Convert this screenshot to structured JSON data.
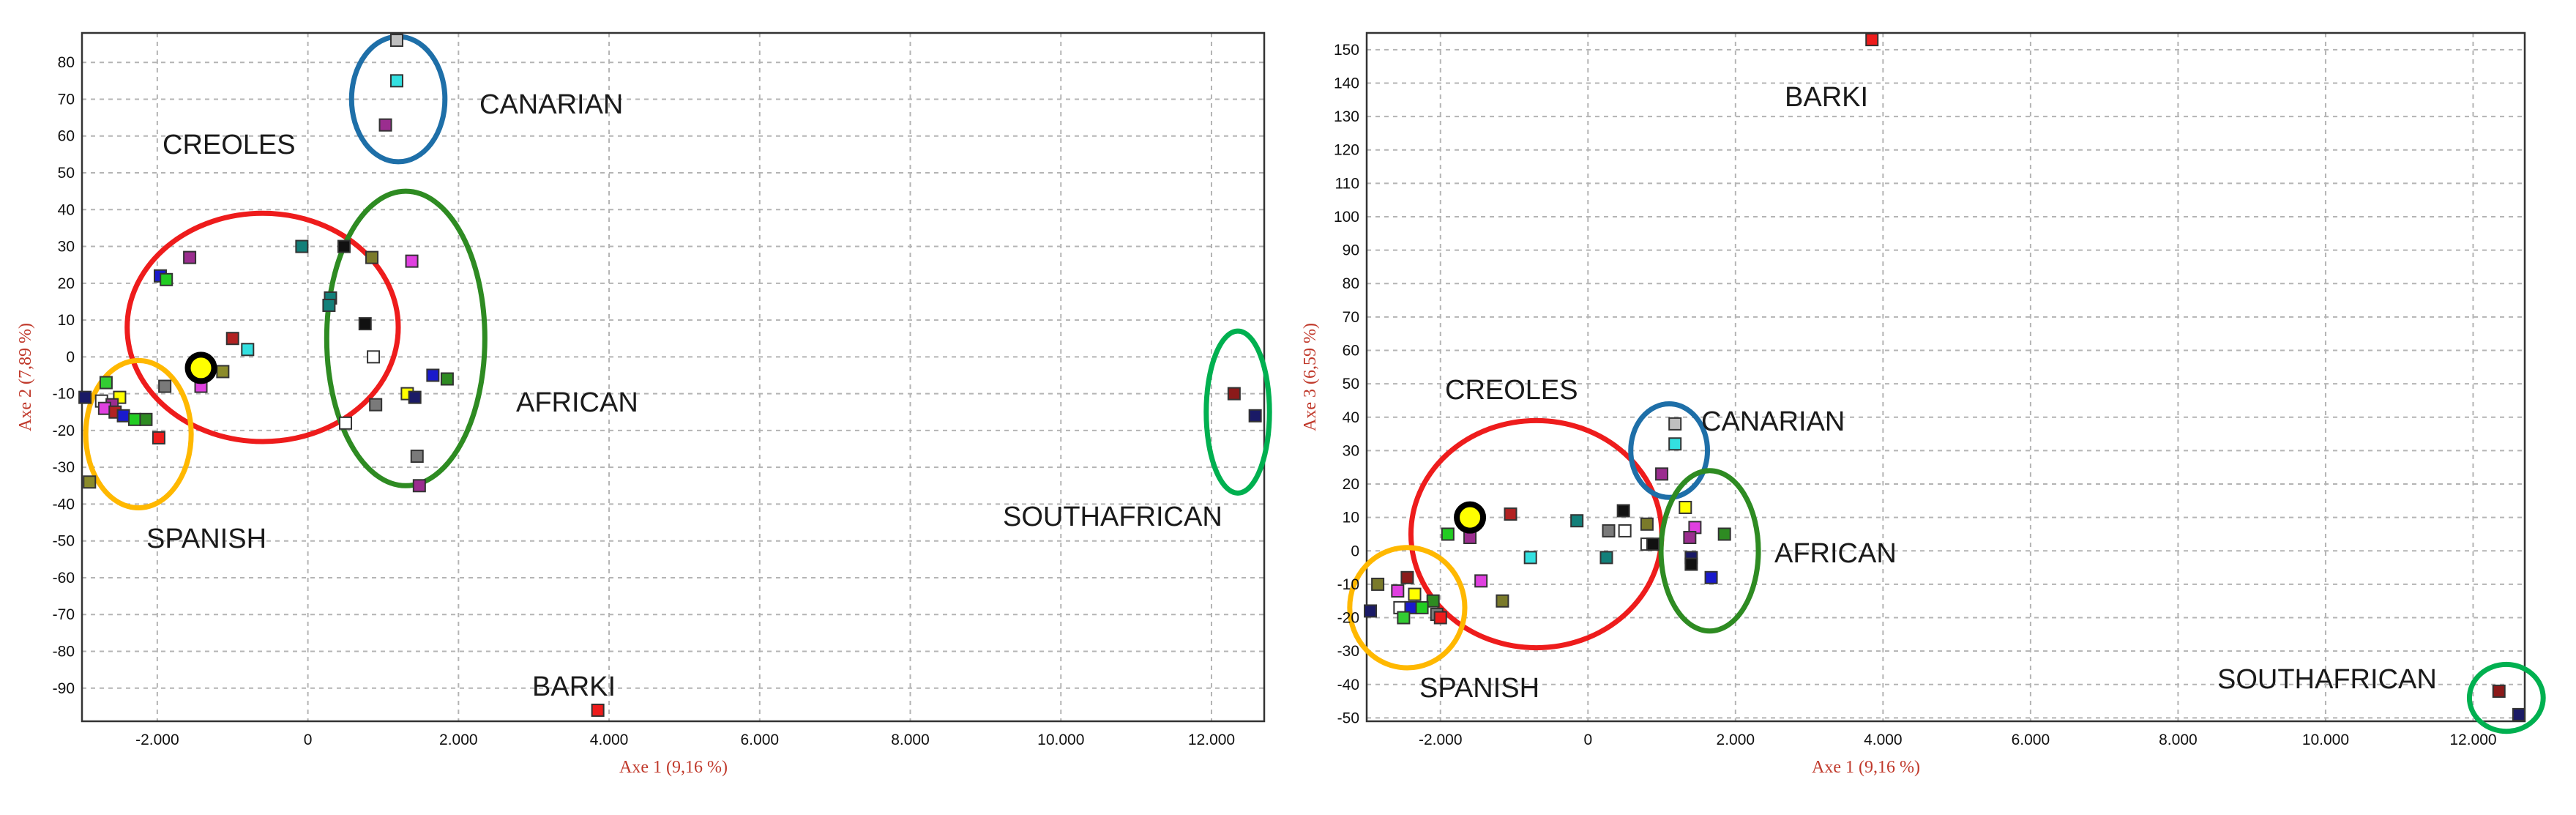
{
  "chart_data": [
    {
      "type": "scatter",
      "xlabel": "Axe 1 (9,16 %)",
      "ylabel": "Axe 2 (7,89 %)",
      "xlim": [
        -3000,
        12700
      ],
      "ylim": [
        -99,
        88
      ],
      "xticks": [
        -2000,
        0,
        2000,
        4000,
        6000,
        8000,
        10000,
        12000
      ],
      "xtick_labels": [
        "-2.000",
        "0",
        "2.000",
        "4.000",
        "6.000",
        "8.000",
        "10.000",
        "12.000"
      ],
      "yticks": [
        80,
        70,
        60,
        50,
        40,
        30,
        20,
        10,
        0,
        -10,
        -20,
        -30,
        -40,
        -50,
        -60,
        -70,
        -80,
        -90
      ],
      "grid": true,
      "groups": [
        {
          "label": "CREOLES",
          "cx": -600,
          "cy": 8,
          "rx": 1800,
          "ry": 31,
          "color": "#ee1c1c"
        },
        {
          "label": "CANARIAN",
          "cx": 1200,
          "cy": 70,
          "rx": 620,
          "ry": 17,
          "color": "#1e6fa8"
        },
        {
          "label": "AFRICAN",
          "cx": 1300,
          "cy": 5,
          "rx": 1050,
          "ry": 40,
          "color": "#2e8b22"
        },
        {
          "label": "SPANISH",
          "cx": -2250,
          "cy": -21,
          "rx": 700,
          "ry": 20,
          "color": "#ffb800"
        },
        {
          "label": "SOUTHAFRICAN",
          "cx": 12350,
          "cy": -15,
          "rx": 420,
          "ry": 22,
          "color": "#00b050"
        },
        {
          "label": "BARKI",
          "cx": null,
          "cy": null,
          "rx": null,
          "ry": null,
          "color": null
        }
      ],
      "centroid": {
        "x": -1420,
        "y": -3
      },
      "points": [
        {
          "x": 1180,
          "y": 86,
          "color": "#bfbfbf"
        },
        {
          "x": 1180,
          "y": 75,
          "color": "#33e0e0"
        },
        {
          "x": 1030,
          "y": 63,
          "color": "#9b2d8f"
        },
        {
          "x": -80,
          "y": 30,
          "color": "#13807a"
        },
        {
          "x": 480,
          "y": 30,
          "color": "#111111"
        },
        {
          "x": 850,
          "y": 27,
          "color": "#7a7a2a"
        },
        {
          "x": 1380,
          "y": 26,
          "color": "#e040e0"
        },
        {
          "x": -1570,
          "y": 27,
          "color": "#9b2d8f"
        },
        {
          "x": 300,
          "y": 16,
          "color": "#13807a"
        },
        {
          "x": 280,
          "y": 14,
          "color": "#13807a"
        },
        {
          "x": -1960,
          "y": 22,
          "color": "#1a1acc"
        },
        {
          "x": -1880,
          "y": 21,
          "color": "#22cc22"
        },
        {
          "x": 760,
          "y": 9,
          "color": "#111111"
        },
        {
          "x": -1000,
          "y": 5,
          "color": "#b22222"
        },
        {
          "x": -800,
          "y": 2,
          "color": "#33e0e0"
        },
        {
          "x": 870,
          "y": 0,
          "color": "#ffffff"
        },
        {
          "x": 1660,
          "y": -5,
          "color": "#1a1acc"
        },
        {
          "x": 1850,
          "y": -6,
          "color": "#2e8b22"
        },
        {
          "x": -1130,
          "y": -4,
          "color": "#8b8b2a"
        },
        {
          "x": -1420,
          "y": -8,
          "color": "#e040e0"
        },
        {
          "x": -1900,
          "y": -8,
          "color": "#7a7a7a"
        },
        {
          "x": 1320,
          "y": -10,
          "color": "#ffff00"
        },
        {
          "x": 1420,
          "y": -11,
          "color": "#1a1a66"
        },
        {
          "x": 900,
          "y": -13,
          "color": "#7a7a7a"
        },
        {
          "x": 500,
          "y": -18,
          "color": "#ffffff"
        },
        {
          "x": -2960,
          "y": -11,
          "color": "#1a1a66"
        },
        {
          "x": -2680,
          "y": -7,
          "color": "#33cc33"
        },
        {
          "x": -2740,
          "y": -12,
          "color": "#ffffff"
        },
        {
          "x": -2500,
          "y": -11,
          "color": "#ffff00"
        },
        {
          "x": -2600,
          "y": -13,
          "color": "#9b2d8f"
        },
        {
          "x": -2700,
          "y": -14,
          "color": "#e040e0"
        },
        {
          "x": -2560,
          "y": -15,
          "color": "#b22222"
        },
        {
          "x": -2450,
          "y": -16,
          "color": "#1a1acc"
        },
        {
          "x": -2300,
          "y": -17,
          "color": "#22cc22"
        },
        {
          "x": -2150,
          "y": -17,
          "color": "#2e8b22"
        },
        {
          "x": -1980,
          "y": -22,
          "color": "#ee1c1c"
        },
        {
          "x": -2900,
          "y": -34,
          "color": "#8b8b2a"
        },
        {
          "x": 1450,
          "y": -27,
          "color": "#7a7a7a"
        },
        {
          "x": 1480,
          "y": -35,
          "color": "#9b2d8f"
        },
        {
          "x": 12300,
          "y": -10,
          "color": "#8b1a1a"
        },
        {
          "x": 12580,
          "y": -16,
          "color": "#1a1a66"
        },
        {
          "x": 3850,
          "y": -96,
          "color": "#ee1c1c"
        }
      ]
    },
    {
      "type": "scatter",
      "xlabel": "Axe 1 (9,16 %)",
      "ylabel": "Axe 3 (6,59 %)",
      "xlim": [
        -3000,
        12700
      ],
      "ylim": [
        -51,
        155
      ],
      "xticks": [
        -2000,
        0,
        2000,
        4000,
        6000,
        8000,
        10000,
        12000
      ],
      "xtick_labels": [
        "-2.000",
        "0",
        "2.000",
        "4.000",
        "6.000",
        "8.000",
        "10.000",
        "12.000"
      ],
      "yticks": [
        150,
        140,
        130,
        120,
        110,
        100,
        90,
        80,
        70,
        60,
        50,
        40,
        30,
        20,
        10,
        0,
        -10,
        -20,
        -30,
        -40,
        -50
      ],
      "grid": true,
      "groups": [
        {
          "label": "CREOLES",
          "cx": -700,
          "cy": 5,
          "rx": 1700,
          "ry": 34,
          "color": "#ee1c1c"
        },
        {
          "label": "CANARIAN",
          "cx": 1100,
          "cy": 30,
          "rx": 520,
          "ry": 14,
          "color": "#1e6fa8"
        },
        {
          "label": "AFRICAN",
          "cx": 1650,
          "cy": 0,
          "rx": 660,
          "ry": 24,
          "color": "#2e8b22"
        },
        {
          "label": "SPANISH",
          "cx": -2450,
          "cy": -17,
          "rx": 780,
          "ry": 18,
          "color": "#ffb800"
        },
        {
          "label": "SOUTHAFRICAN",
          "cx": 12450,
          "cy": -44,
          "rx": 500,
          "ry": 10,
          "color": "#00b050"
        },
        {
          "label": "BARKI",
          "cx": null,
          "cy": null,
          "rx": null,
          "ry": null,
          "color": null
        }
      ],
      "centroid": {
        "x": -1600,
        "y": 10
      },
      "points": [
        {
          "x": 3850,
          "y": 153,
          "color": "#ee1c1c"
        },
        {
          "x": 1180,
          "y": 38,
          "color": "#bfbfbf"
        },
        {
          "x": 1180,
          "y": 32,
          "color": "#33e0e0"
        },
        {
          "x": 1000,
          "y": 23,
          "color": "#9b2d8f"
        },
        {
          "x": 480,
          "y": 12,
          "color": "#111111"
        },
        {
          "x": 1320,
          "y": 13,
          "color": "#ffff00"
        },
        {
          "x": -1050,
          "y": 11,
          "color": "#b22222"
        },
        {
          "x": -150,
          "y": 9,
          "color": "#13807a"
        },
        {
          "x": 800,
          "y": 8,
          "color": "#7a7a2a"
        },
        {
          "x": 280,
          "y": 6,
          "color": "#7a7a7a"
        },
        {
          "x": 500,
          "y": 6,
          "color": "#ffffff"
        },
        {
          "x": 1450,
          "y": 7,
          "color": "#e040e0"
        },
        {
          "x": 1380,
          "y": 4,
          "color": "#9b2d8f"
        },
        {
          "x": 1850,
          "y": 5,
          "color": "#2e8b22"
        },
        {
          "x": -1900,
          "y": 5,
          "color": "#22cc22"
        },
        {
          "x": -1600,
          "y": 4,
          "color": "#9b2d8f"
        },
        {
          "x": 800,
          "y": 2,
          "color": "#ffffff"
        },
        {
          "x": 880,
          "y": 2,
          "color": "#111111"
        },
        {
          "x": -780,
          "y": -2,
          "color": "#33e0e0"
        },
        {
          "x": 250,
          "y": -2,
          "color": "#13807a"
        },
        {
          "x": 1400,
          "y": -2,
          "color": "#1a1a66"
        },
        {
          "x": 1400,
          "y": -4,
          "color": "#111111"
        },
        {
          "x": 1670,
          "y": -8,
          "color": "#1a1acc"
        },
        {
          "x": -1450,
          "y": -9,
          "color": "#e040e0"
        },
        {
          "x": -2850,
          "y": -10,
          "color": "#7a7a2a"
        },
        {
          "x": -2450,
          "y": -8,
          "color": "#8b1a1a"
        },
        {
          "x": -2580,
          "y": -12,
          "color": "#e040e0"
        },
        {
          "x": -2350,
          "y": -13,
          "color": "#ffff00"
        },
        {
          "x": -2100,
          "y": -15,
          "color": "#2e8b22"
        },
        {
          "x": -1160,
          "y": -15,
          "color": "#7a7a2a"
        },
        {
          "x": -2550,
          "y": -17,
          "color": "#ffffff"
        },
        {
          "x": -2400,
          "y": -17,
          "color": "#1a1acc"
        },
        {
          "x": -2250,
          "y": -17,
          "color": "#22cc22"
        },
        {
          "x": -2950,
          "y": -18,
          "color": "#1a1a66"
        },
        {
          "x": -2050,
          "y": -19,
          "color": "#7a7a7a"
        },
        {
          "x": -2500,
          "y": -20,
          "color": "#33cc33"
        },
        {
          "x": -2000,
          "y": -20,
          "color": "#ee1c1c"
        },
        {
          "x": 12350,
          "y": -42,
          "color": "#8b1a1a"
        },
        {
          "x": 12620,
          "y": -49,
          "color": "#1a1a66"
        }
      ]
    }
  ]
}
